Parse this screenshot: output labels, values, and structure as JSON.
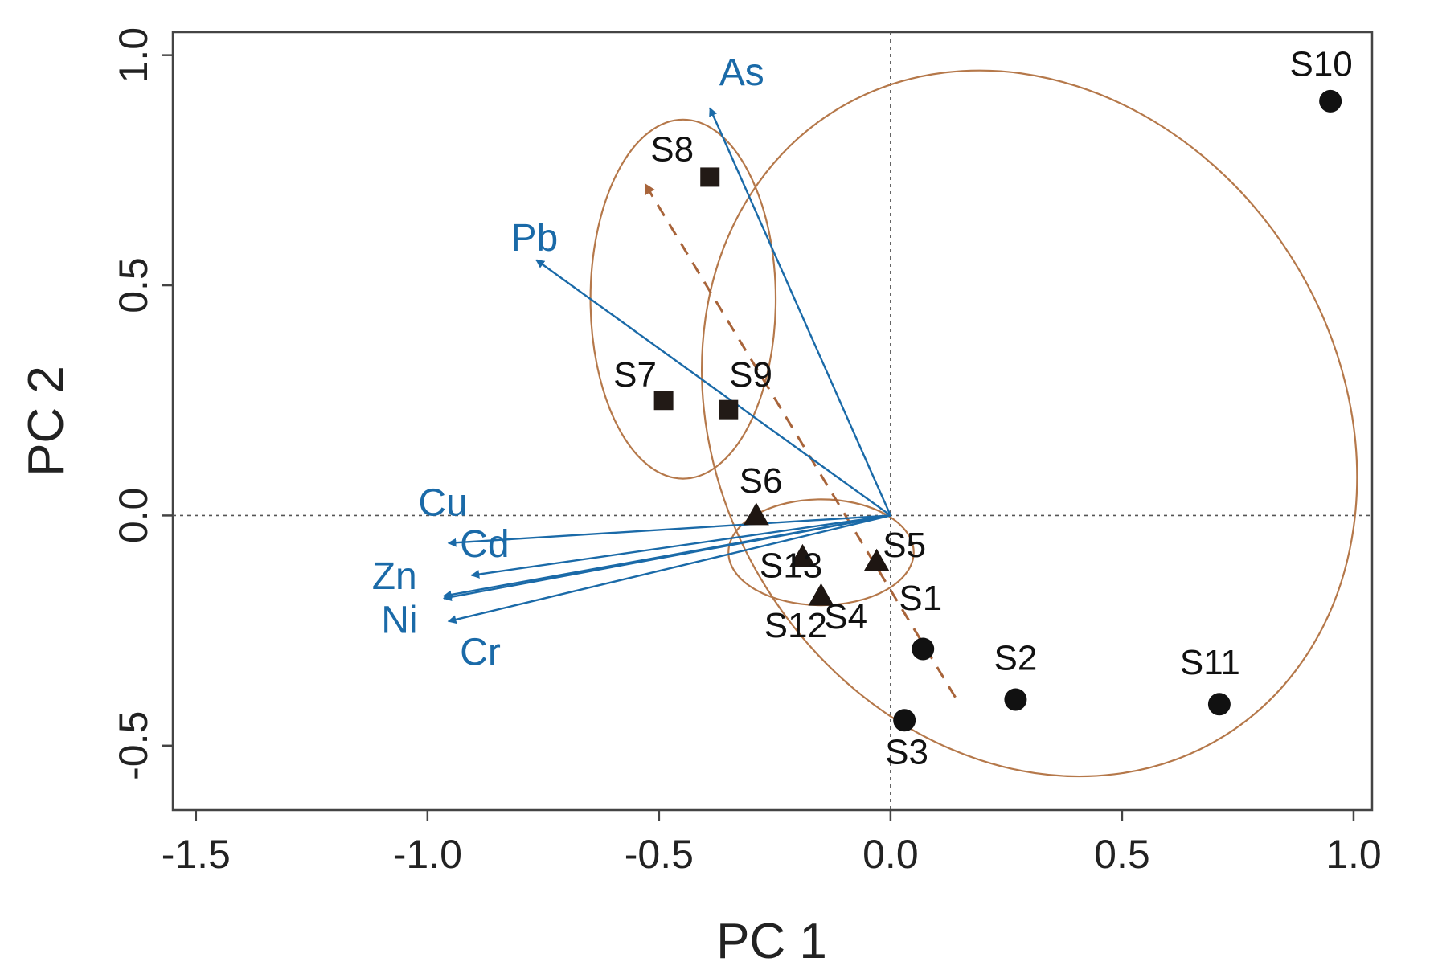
{
  "chart_data": {
    "type": "scatter",
    "title": "",
    "xlabel": "PC 1",
    "ylabel": "PC 2",
    "xlim": [
      -1.55,
      1.04
    ],
    "ylim": [
      -0.64,
      1.05
    ],
    "xticks": [
      -1.5,
      -1.0,
      -0.5,
      0.0,
      0.5,
      1.0
    ],
    "xtick_labels": [
      "-1.5",
      "-1.0",
      "-0.5",
      "0.0",
      "0.5",
      "1.0"
    ],
    "yticks": [
      -0.5,
      0.0,
      0.5,
      1.0
    ],
    "ytick_labels": [
      "-0.5",
      "0.0",
      "0.5",
      "1.0"
    ],
    "reference_lines": {
      "x": 0.0,
      "y": 0.0,
      "style": "dotted"
    },
    "colors": {
      "vectors": "#1a6aa8",
      "ellipses": "#b5784a",
      "trend": "#a8643a",
      "points": "#111111",
      "frame": "#444444"
    },
    "groups": [
      {
        "marker": "circle",
        "points": [
          {
            "label": "S1",
            "x": 0.07,
            "y": -0.29
          },
          {
            "label": "S2",
            "x": 0.27,
            "y": -0.4
          },
          {
            "label": "S3",
            "x": 0.03,
            "y": -0.445
          },
          {
            "label": "S10",
            "x": 0.95,
            "y": 0.9
          },
          {
            "label": "S11",
            "x": 0.71,
            "y": -0.41
          }
        ],
        "ellipse": {
          "cx": 0.3,
          "cy": 0.2,
          "rx": 0.67,
          "ry": 0.8,
          "angle_deg": -32
        }
      },
      {
        "marker": "square",
        "points": [
          {
            "label": "S7",
            "x": -0.49,
            "y": 0.25
          },
          {
            "label": "S8",
            "x": -0.39,
            "y": 0.735
          },
          {
            "label": "S9",
            "x": -0.35,
            "y": 0.23
          }
        ],
        "ellipse": {
          "cx": -0.448,
          "cy": 0.47,
          "rx": 0.2,
          "ry": 0.39,
          "angle_deg": 0
        }
      },
      {
        "marker": "triangle",
        "points": [
          {
            "label": "S4",
            "x": -0.15,
            "y": -0.175
          },
          {
            "label": "S5",
            "x": -0.03,
            "y": -0.1
          },
          {
            "label": "S6",
            "x": -0.29,
            "y": 0.0
          },
          {
            "label": "S12",
            "x": -0.19,
            "y": -0.09
          },
          {
            "label": "S13",
            "x": -0.19,
            "y": -0.09
          }
        ],
        "ellipse": {
          "cx": -0.15,
          "cy": -0.08,
          "rx": 0.2,
          "ry": 0.115,
          "angle_deg": 0
        }
      }
    ],
    "loadings": [
      {
        "name": "As",
        "x": -0.39,
        "y": 0.885
      },
      {
        "name": "Pb",
        "x": -0.765,
        "y": 0.555
      },
      {
        "name": "Cu",
        "x": -0.955,
        "y": -0.06
      },
      {
        "name": "Cd",
        "x": -0.905,
        "y": -0.13
      },
      {
        "name": "Zn",
        "x": -0.965,
        "y": -0.175
      },
      {
        "name": "Ni",
        "x": -0.965,
        "y": -0.18
      },
      {
        "name": "Cr",
        "x": -0.955,
        "y": -0.23
      }
    ],
    "trend_arrow": {
      "from": {
        "x": 0.14,
        "y": -0.395
      },
      "to": {
        "x": -0.53,
        "y": 0.72
      },
      "style": "dashed"
    }
  }
}
